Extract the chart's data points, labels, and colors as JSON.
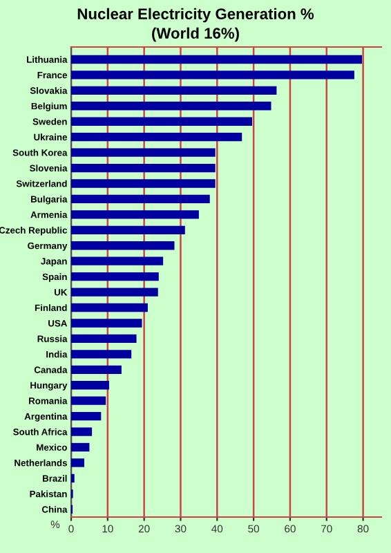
{
  "chart_data": {
    "type": "bar",
    "orientation": "horizontal",
    "title": "Nuclear Electricity Generation %",
    "subtitle": "(World 16%)",
    "xlabel": "%",
    "categories": [
      "Lithuania",
      "France",
      "Slovakia",
      "Belgium",
      "Sweden",
      "Ukraine",
      "South Korea",
      "Slovenia",
      "Switzerland",
      "Bulgaria",
      "Armenia",
      "Czech Republic",
      "Germany",
      "Japan",
      "Spain",
      "UK",
      "Finland",
      "USA",
      "Russia",
      "India",
      "Canada",
      "Hungary",
      "Romania",
      "Argentina",
      "South Africa",
      "Mexico",
      "Netherlands",
      "Brazil",
      "Pakistan",
      "China"
    ],
    "values": [
      79.7,
      77.6,
      56.3,
      54.8,
      49.6,
      46.8,
      39.5,
      39.5,
      39.5,
      38,
      35,
      31.2,
      28.3,
      25.2,
      24,
      23.8,
      21,
      19.4,
      17.9,
      16.5,
      13.8,
      10.4,
      9.5,
      8.2,
      5.7,
      5,
      3.6,
      0.9,
      0.5,
      0.4
    ],
    "color": "#0000a0",
    "xlim": [
      0,
      85
    ],
    "xticks": [
      0,
      10,
      20,
      30,
      40,
      50,
      60,
      70,
      80
    ],
    "grid": "x"
  }
}
